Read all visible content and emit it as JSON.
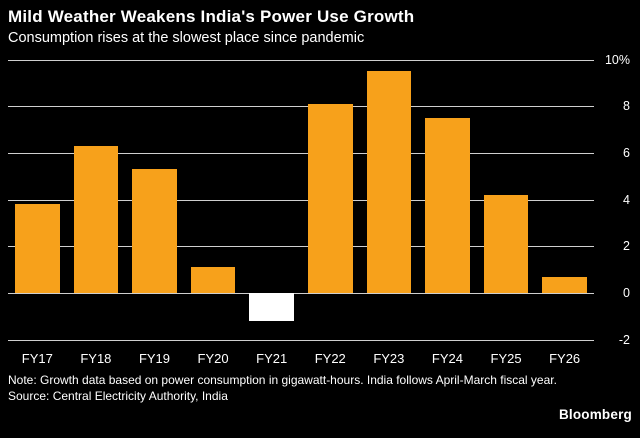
{
  "header": {
    "title": "Mild Weather Weakens India's Power Use Growth",
    "subtitle": "Consumption rises at the slowest place since pandemic"
  },
  "chart_data": {
    "type": "bar",
    "title": "Mild Weather Weakens India's Power Use Growth",
    "subtitle": "Consumption rises at the slowest place since pandemic",
    "categories": [
      "FY17",
      "FY18",
      "FY19",
      "FY20",
      "FY21",
      "FY22",
      "FY23",
      "FY24",
      "FY25",
      "FY26"
    ],
    "values": [
      3.8,
      6.3,
      5.3,
      1.1,
      -1.2,
      8.1,
      9.5,
      7.5,
      4.2,
      0.7
    ],
    "ylim": [
      -2,
      10
    ],
    "yticks": [
      {
        "value": 10,
        "label": "10%"
      },
      {
        "value": 8,
        "label": "8"
      },
      {
        "value": 6,
        "label": "6"
      },
      {
        "value": 4,
        "label": "4"
      },
      {
        "value": 2,
        "label": "2"
      },
      {
        "value": 0,
        "label": "0"
      },
      {
        "value": -2,
        "label": "-2"
      }
    ],
    "ylabel": "",
    "xlabel": "",
    "grid": "on",
    "legend_position": "none",
    "bar_color": "#f7a11b",
    "negative_bar_color": "#ffffff",
    "background_color": "#000000",
    "gridline_color": "#cfcfcf"
  },
  "footer": {
    "note": "Note: Growth data based on power consumption in gigawatt-hours. India follows April-March fiscal year.",
    "source": "Source: Central Electricity Authority, India",
    "brand": "Bloomberg"
  }
}
